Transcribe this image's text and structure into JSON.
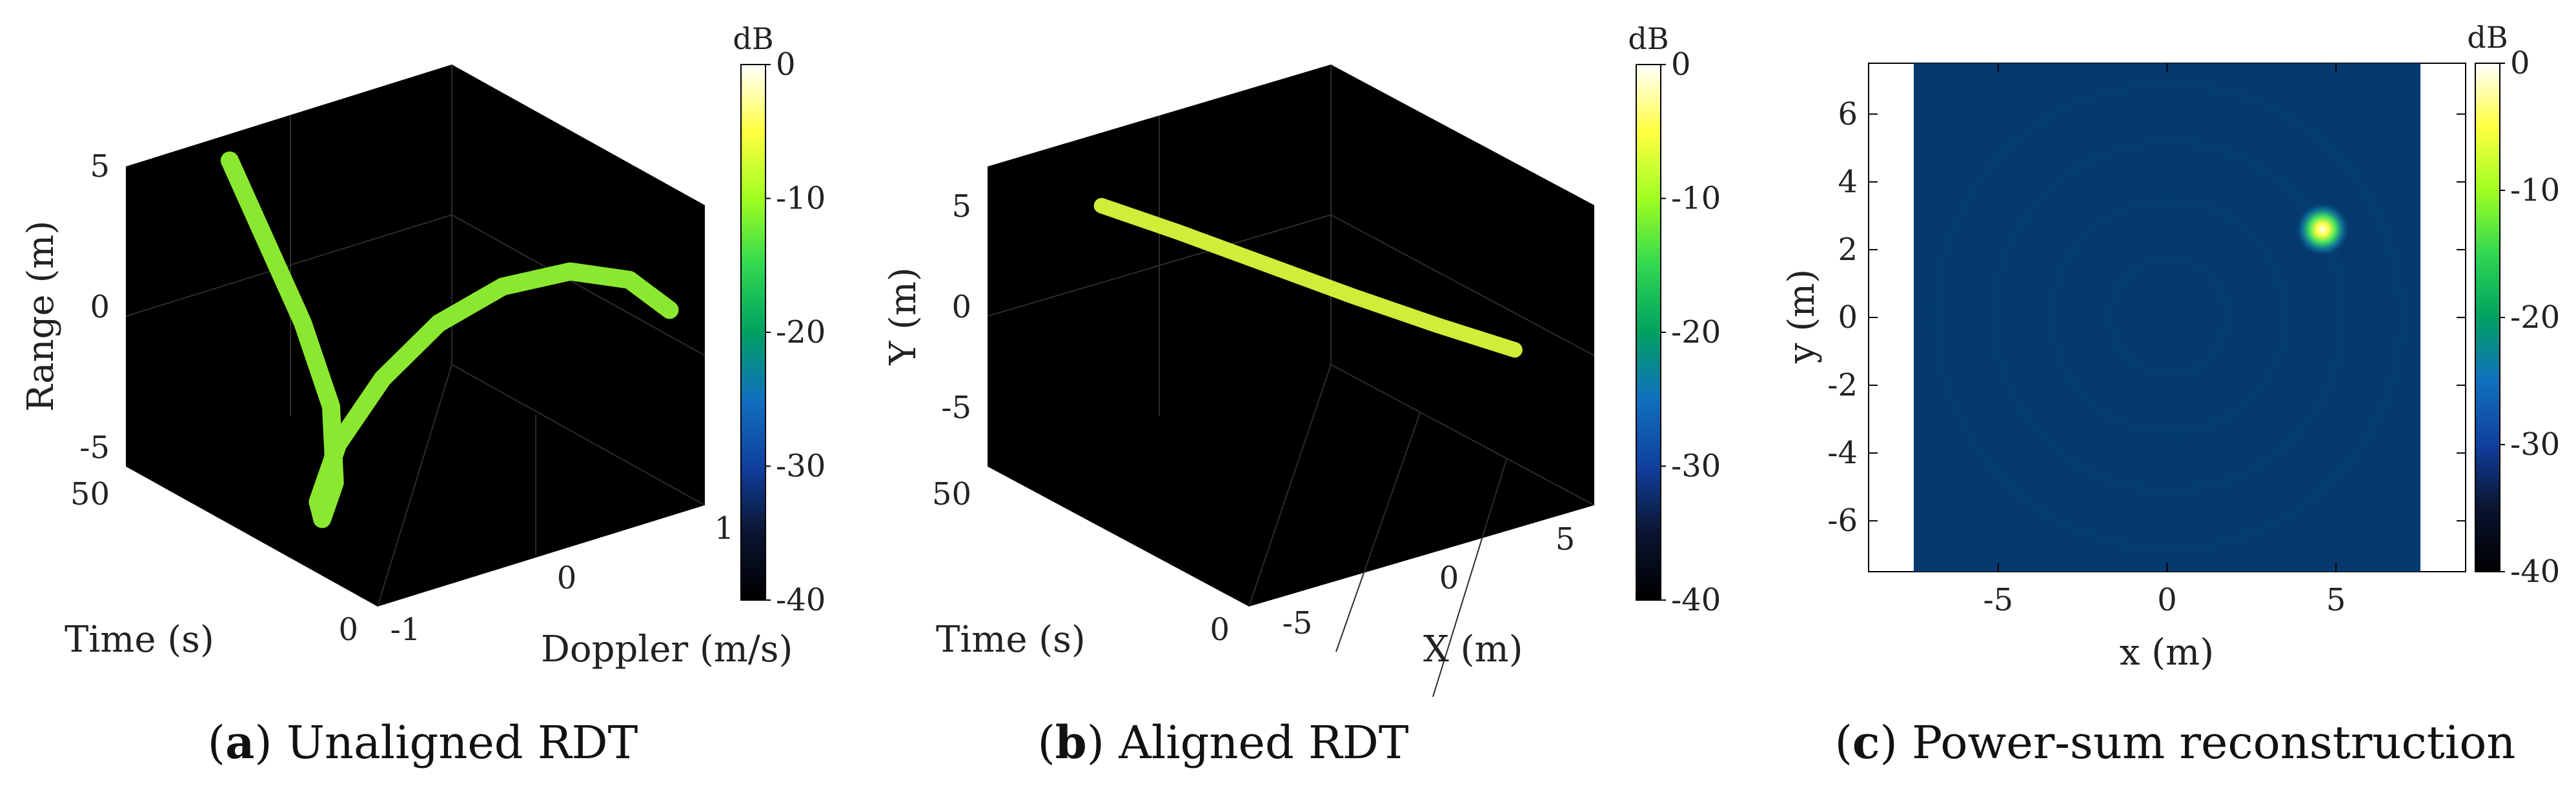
{
  "colormap": {
    "unit": "dB",
    "ticks": [
      "0",
      "-10",
      "-20",
      "-30",
      "-40"
    ],
    "stops": [
      "#ffffff",
      "#ffff40",
      "#a0ff20",
      "#30d850",
      "#00a060",
      "#1070c0",
      "#1040a0",
      "#0a1430",
      "#000000"
    ]
  },
  "chart_data": [
    {
      "type": "line",
      "panel": "a",
      "caption_letter": "a",
      "caption_text": " Unaligned RDT",
      "xlabel": "Doppler (m/s)",
      "ylabel": "Range (m)",
      "zlabel": "Time (s)",
      "x_ticks": [
        "-1",
        "0",
        "1"
      ],
      "y_ticks": [
        "5",
        "0",
        "-5"
      ],
      "z_ticks": [
        "0",
        "50"
      ],
      "xlim": [
        -1,
        1
      ],
      "ylim": [
        -5,
        5
      ],
      "zlim": [
        0,
        50
      ],
      "series": [
        {
          "color": "#8be830",
          "points": [
            [
              -0.55,
              5.0,
              44
            ],
            [
              -0.45,
              2.5,
              40
            ],
            [
              -0.35,
              0.0,
              36
            ],
            [
              -0.3,
              -2.5,
              32
            ],
            [
              -0.4,
              -4.5,
              28
            ],
            [
              -0.6,
              -5.0,
              24
            ],
            [
              -0.75,
              -3.8,
              20
            ],
            [
              -0.75,
              -1.5,
              16
            ],
            [
              -0.6,
              0.8,
              12
            ],
            [
              -0.35,
              2.5,
              9
            ],
            [
              -0.05,
              3.5,
              6
            ],
            [
              0.3,
              3.6,
              4
            ],
            [
              0.6,
              3.0,
              2
            ],
            [
              0.8,
              1.8,
              0.5
            ]
          ]
        }
      ]
    },
    {
      "type": "line",
      "panel": "b",
      "caption_letter": "b",
      "caption_text": " Aligned RDT",
      "xlabel": "X (m)",
      "ylabel": "Y (m)",
      "zlabel": "Time (s)",
      "x_ticks": [
        "-5",
        "0",
        "5"
      ],
      "y_ticks": [
        "5",
        "0",
        "-5"
      ],
      "z_ticks": [
        "0",
        "50"
      ],
      "xlim": [
        -7.5,
        7.5
      ],
      "ylim": [
        -7.5,
        7.5
      ],
      "zlim": [
        0,
        50
      ],
      "series": [
        {
          "color": "#d2ec3a",
          "points": [
            [
              -3.0,
              4.3,
              48
            ],
            [
              -1.5,
              3.6,
              40
            ],
            [
              0.0,
              2.9,
              30
            ],
            [
              1.5,
              2.2,
              20
            ],
            [
              3.0,
              1.6,
              10
            ],
            [
              4.5,
              1.0,
              2
            ]
          ]
        }
      ]
    },
    {
      "type": "heatmap",
      "panel": "c",
      "caption_letter": "c",
      "caption_text": " Power-sum reconstruction",
      "xlabel": "x (m)",
      "ylabel": "y (m)",
      "x_ticks": [
        "-5",
        "0",
        "5"
      ],
      "y_ticks": [
        "6",
        "4",
        "2",
        "0",
        "-2",
        "-4",
        "-6"
      ],
      "xlim": [
        -7.5,
        7.5
      ],
      "ylim": [
        -7.5,
        7.5
      ],
      "background_color": "#063a6e",
      "peak": {
        "x": 4.6,
        "y": 2.6,
        "value_db": -5
      }
    }
  ]
}
